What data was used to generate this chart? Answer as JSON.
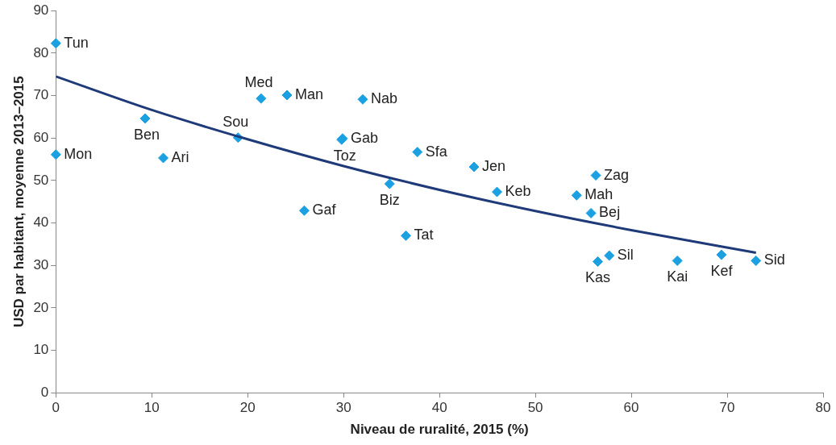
{
  "chart_data": {
    "type": "scatter",
    "xlabel": "Niveau de ruralité, 2015 (%)",
    "ylabel": "USD par habitant, moyenne 2013–2015",
    "xlim": [
      0,
      80
    ],
    "xticks": [
      0,
      10,
      20,
      30,
      40,
      50,
      60,
      70,
      80
    ],
    "ylim": [
      0,
      90
    ],
    "yticks": [
      0,
      10,
      20,
      30,
      40,
      50,
      60,
      70,
      80,
      90
    ],
    "grid": false,
    "legend": false,
    "marker": "diamond",
    "series": [
      {
        "color": "#1ba1e2",
        "x": [
          0,
          0,
          9.3,
          11.2,
          19.0,
          21.4,
          24.1,
          32.0,
          29.9,
          29.8,
          37.7,
          43.6,
          46.0,
          34.8,
          25.9,
          36.5,
          56.3,
          54.3,
          55.8,
          57.7,
          56.5,
          64.8,
          69.4,
          73.0
        ],
        "values": [
          82.3,
          56.1,
          64.6,
          55.3,
          60.1,
          69.3,
          70.1,
          69.1,
          59.9,
          59.6,
          56.7,
          53.2,
          47.3,
          49.2,
          42.9,
          37.0,
          51.2,
          46.5,
          42.3,
          32.3,
          30.9,
          31.1,
          32.5,
          31.1
        ]
      },
      {
        "type": "line",
        "color": "#1f3a78",
        "marker": "none",
        "line_style": "solid",
        "x": [
          0,
          10,
          20,
          30,
          40,
          50,
          60,
          73
        ],
        "values": [
          74.5,
          66.6,
          59.7,
          53.4,
          47.8,
          42.8,
          38.3,
          33.0
        ]
      }
    ],
    "annotations": [
      {
        "text": "Tun",
        "x": 0,
        "y": 82.3
      },
      {
        "text": "Mon",
        "x": 0,
        "y": 56.1
      },
      {
        "text": "Ben",
        "x": 9.3,
        "y": 64.6
      },
      {
        "text": "Ari",
        "x": 11.2,
        "y": 55.3
      },
      {
        "text": "Sou",
        "x": 19.0,
        "y": 60.1
      },
      {
        "text": "Med",
        "x": 21.4,
        "y": 69.3
      },
      {
        "text": "Man",
        "x": 24.1,
        "y": 70.1
      },
      {
        "text": "Nab",
        "x": 32.0,
        "y": 69.1
      },
      {
        "text": "Gab",
        "x": 29.9,
        "y": 59.9
      },
      {
        "text": "Toz",
        "x": 29.8,
        "y": 59.6
      },
      {
        "text": "Sfa",
        "x": 37.7,
        "y": 56.7
      },
      {
        "text": "Jen",
        "x": 43.6,
        "y": 53.2
      },
      {
        "text": "Keb",
        "x": 46.0,
        "y": 47.3
      },
      {
        "text": "Biz",
        "x": 34.8,
        "y": 49.2
      },
      {
        "text": "Gaf",
        "x": 25.9,
        "y": 42.9
      },
      {
        "text": "Tat",
        "x": 36.5,
        "y": 37.0
      },
      {
        "text": "Zag",
        "x": 56.3,
        "y": 51.2
      },
      {
        "text": "Mah",
        "x": 54.3,
        "y": 46.5
      },
      {
        "text": "Bej",
        "x": 55.8,
        "y": 42.3
      },
      {
        "text": "Sil",
        "x": 57.7,
        "y": 32.3
      },
      {
        "text": "Kas",
        "x": 56.5,
        "y": 30.9
      },
      {
        "text": "Kai",
        "x": 64.8,
        "y": 31.1
      },
      {
        "text": "Kef",
        "x": 69.4,
        "y": 32.5
      },
      {
        "text": "Sid",
        "x": 73.0,
        "y": 31.1
      }
    ]
  }
}
